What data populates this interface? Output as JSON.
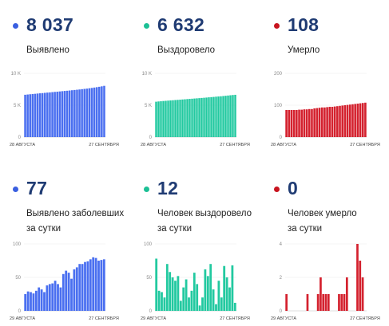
{
  "panels": [
    {
      "value": "8 037",
      "label_lines": [
        "Выявлено"
      ],
      "color": "#4a6ff0",
      "dot_color": "#3a5fe0"
    },
    {
      "value": "6 632",
      "label_lines": [
        "Выздоровело"
      ],
      "color": "#22c9a0",
      "dot_color": "#1cc095"
    },
    {
      "value": "108",
      "label_lines": [
        "Умерло"
      ],
      "color": "#d4212e",
      "dot_color": "#c8141f"
    },
    {
      "value": "77",
      "label_lines": [
        "Выявлено заболевших",
        "за сутки"
      ],
      "color": "#4a6ff0",
      "dot_color": "#3a5fe0"
    },
    {
      "value": "12",
      "label_lines": [
        "Человек выздоровело",
        "за сутки"
      ],
      "color": "#22c9a0",
      "dot_color": "#1cc095"
    },
    {
      "value": "0",
      "label_lines": [
        "Человек умерло",
        "за сутки"
      ],
      "color": "#d4212e",
      "dot_color": "#c8141f"
    }
  ],
  "chart_data": [
    {
      "type": "bar",
      "x_start": "28 АВГУСТА",
      "x_end": "27 СЕНТЯБРЯ",
      "y_ticks": [
        "10 K",
        "5 K",
        "0"
      ],
      "ylim": [
        0,
        10000
      ],
      "values": [
        6640,
        6680,
        6720,
        6760,
        6790,
        6830,
        6870,
        6900,
        6940,
        6980,
        7010,
        7050,
        7090,
        7120,
        7160,
        7200,
        7240,
        7270,
        7310,
        7350,
        7390,
        7430,
        7470,
        7520,
        7560,
        7600,
        7660,
        7710,
        7770,
        7830,
        7890,
        7960,
        8037
      ]
    },
    {
      "type": "bar",
      "x_start": "28 АВГУСТА",
      "x_end": "27 СЕНТЯБРЯ",
      "y_ticks": [
        "10 K",
        "5 K",
        "0"
      ],
      "ylim": [
        0,
        10000
      ],
      "values": [
        5550,
        5590,
        5620,
        5660,
        5690,
        5720,
        5750,
        5780,
        5810,
        5840,
        5870,
        5900,
        5930,
        5960,
        5990,
        6020,
        6050,
        6080,
        6110,
        6140,
        6170,
        6200,
        6240,
        6270,
        6300,
        6340,
        6370,
        6400,
        6440,
        6480,
        6520,
        6560,
        6600,
        6632
      ]
    },
    {
      "type": "bar",
      "x_start": "28 АВГУСТА",
      "x_end": "27 СЕНТЯБРЯ",
      "y_ticks": [
        "200",
        "100",
        "0"
      ],
      "ylim": [
        0,
        200
      ],
      "values": [
        85,
        85,
        85,
        85,
        85,
        86,
        86,
        87,
        87,
        88,
        88,
        90,
        91,
        92,
        93,
        93,
        94,
        95,
        95,
        96,
        97,
        98,
        99,
        100,
        101,
        102,
        103,
        104,
        105,
        106,
        107,
        108
      ]
    },
    {
      "type": "bar",
      "x_start": "29 АВГУСТА",
      "x_end": "27 СЕНТЯБРЯ",
      "y_ticks": [
        "100",
        "50",
        "0"
      ],
      "ylim": [
        0,
        100
      ],
      "values": [
        25,
        29,
        28,
        26,
        30,
        35,
        32,
        28,
        38,
        40,
        41,
        45,
        40,
        35,
        55,
        60,
        57,
        48,
        62,
        65,
        70,
        70,
        73,
        74,
        77,
        80,
        79,
        75,
        76,
        77
      ]
    },
    {
      "type": "bar",
      "x_start": "29 АВГУСТА",
      "x_end": "27 СЕНТЯБРЯ",
      "y_ticks": [
        "100",
        "50",
        "0"
      ],
      "ylim": [
        0,
        100
      ],
      "values": [
        78,
        30,
        28,
        20,
        70,
        58,
        50,
        45,
        52,
        15,
        35,
        47,
        20,
        30,
        57,
        40,
        8,
        20,
        62,
        52,
        70,
        32,
        10,
        45,
        20,
        67,
        50,
        35,
        68,
        12
      ]
    },
    {
      "type": "bar",
      "x_start": "29 АВГУСТА",
      "x_end": "27 СЕНТЯБРЯ",
      "y_ticks": [
        "4",
        "2",
        "0"
      ],
      "ylim": [
        0,
        4
      ],
      "values": [
        1,
        0,
        0,
        0,
        0,
        0,
        0,
        0,
        1,
        0,
        0,
        0,
        1,
        2,
        1,
        1,
        1,
        0,
        0,
        0,
        1,
        1,
        1,
        2,
        0,
        0,
        0,
        4,
        3,
        2,
        0
      ]
    }
  ]
}
